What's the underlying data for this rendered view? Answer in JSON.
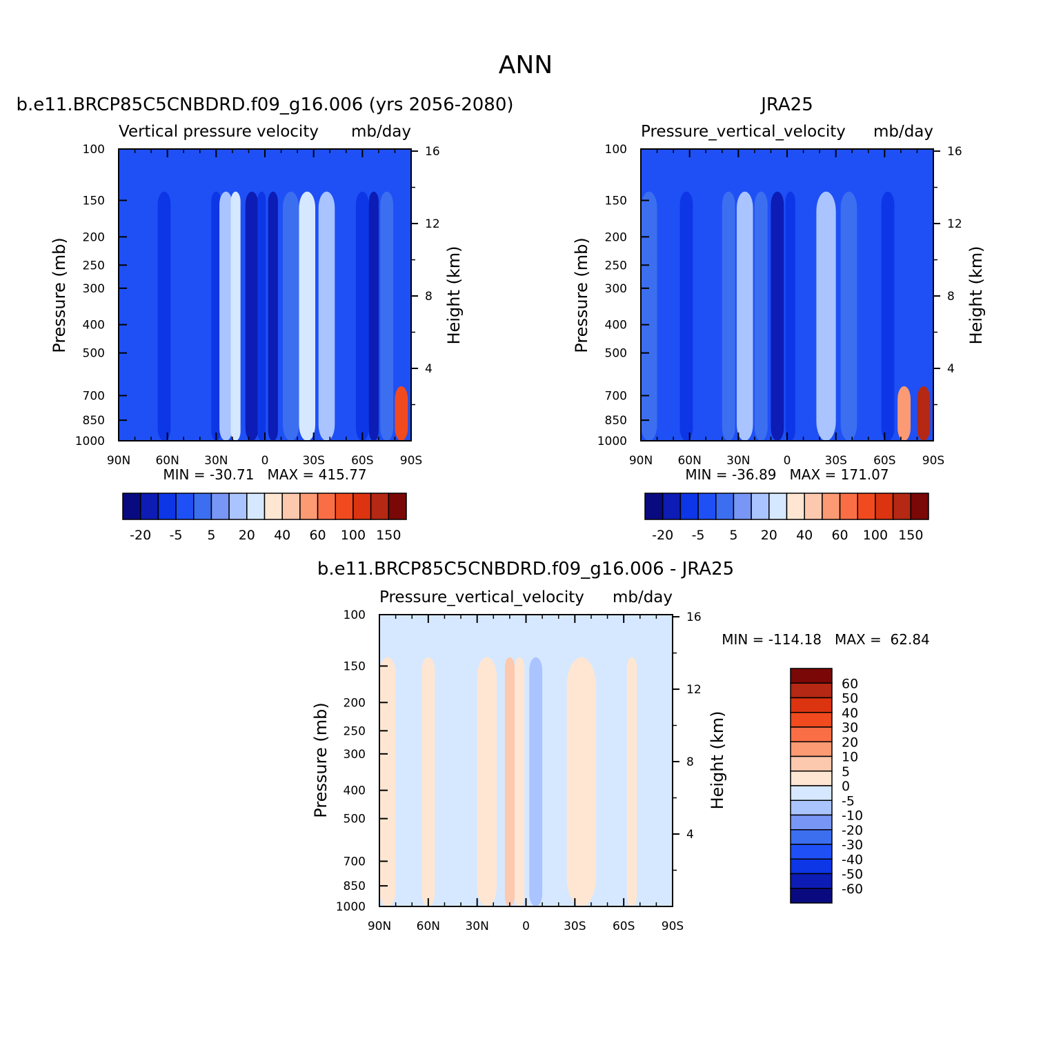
{
  "figure_title": "ANN",
  "colors": {
    "model_obs_palette": [
      "#0a0a80",
      "#0c1cb4",
      "#0c36e6",
      "#1e50f5",
      "#3c6ef0",
      "#7896f5",
      "#aac4ff",
      "#d6e8ff",
      "#ffe6d2",
      "#fcc8ae",
      "#fc9a74",
      "#fa6e46",
      "#f04a1e",
      "#dc3410",
      "#b42814",
      "#7a0806"
    ],
    "diff_palette": [
      "#0a0a80",
      "#0c1cb4",
      "#0c36e6",
      "#1e50f5",
      "#3c6ef0",
      "#7896f5",
      "#aac4ff",
      "#d6e8ff",
      "#ffe6d2",
      "#fcc8ae",
      "#fc9a74",
      "#fa6e46",
      "#f04a1e",
      "#dc3410",
      "#b42814",
      "#7a0806"
    ]
  },
  "panels": [
    {
      "id": "model",
      "title": "b.e11.BRCP85C5CNBDRD.f09_g16.006 (yrs 2056-2080)",
      "subtitle_left": "Vertical pressure velocity",
      "subtitle_right": "mb/day",
      "ylabel": "Pressure (mb)",
      "y2label": "Height (km)",
      "minmax": "MIN = -30.71   MAX = 415.77",
      "colorbar_labels": [
        "-20",
        "-5",
        "5",
        "20",
        "40",
        "60",
        "100",
        "150"
      ]
    },
    {
      "id": "obs",
      "title": "JRA25",
      "subtitle_left": "Pressure_vertical_velocity",
      "subtitle_right": "mb/day",
      "ylabel": "Pressure (mb)",
      "y2label": "Height (km)",
      "minmax": "MIN = -36.89   MAX = 171.07",
      "colorbar_labels": [
        "-20",
        "-5",
        "5",
        "20",
        "40",
        "60",
        "100",
        "150"
      ]
    },
    {
      "id": "diff",
      "title": "b.e11.BRCP85C5CNBDRD.f09_g16.006 - JRA25",
      "subtitle_left": "Pressure_vertical_velocity",
      "subtitle_right": "mb/day",
      "ylabel": "Pressure (mb)",
      "y2label": "Height (km)",
      "minmax": "MIN = -114.18   MAX =  62.84",
      "colorbar_labels": [
        "60",
        "50",
        "40",
        "30",
        "20",
        "10",
        "5",
        "0",
        "-5",
        "-10",
        "-20",
        "-30",
        "-40",
        "-50",
        "-60"
      ]
    }
  ],
  "chart_data": [
    {
      "type": "heatmap",
      "title": "b.e11.BRCP85C5CNBDRD.f09_g16.006 (yrs 2056-2080)",
      "xlabel": "",
      "ylabel": "Pressure (mb)",
      "y2label": "Height (km)",
      "x_ticks": [
        "90N",
        "60N",
        "30N",
        "0",
        "30S",
        "60S",
        "90S"
      ],
      "x_tick_values": [
        90,
        60,
        30,
        0,
        -30,
        -60,
        -90
      ],
      "xlim": [
        90,
        -90
      ],
      "y_ticks": [
        100,
        150,
        200,
        250,
        300,
        400,
        500,
        700,
        850,
        1000
      ],
      "ylim": [
        1000,
        100
      ],
      "y_scale": "log",
      "y2_ticks": [
        4,
        8,
        12,
        16
      ],
      "units": "mb/day",
      "levels": [
        -30,
        -20,
        -10,
        -5,
        0,
        5,
        10,
        20,
        30,
        40,
        50,
        60,
        80,
        100,
        150
      ],
      "min": -30.71,
      "max": 415.77,
      "bands": [
        {
          "lat_center": 85,
          "lat_width": 10,
          "value": -10
        },
        {
          "lat_center": 75,
          "lat_width": 10,
          "value": -10
        },
        {
          "lat_center": 62,
          "lat_width": 8,
          "value": -20
        },
        {
          "lat_center": 48,
          "lat_width": 10,
          "value": -10
        },
        {
          "lat_center": 38,
          "lat_width": 8,
          "value": -10
        },
        {
          "lat_center": 30,
          "lat_width": 6,
          "value": -20
        },
        {
          "lat_center": 24,
          "lat_width": 8,
          "value": 5
        },
        {
          "lat_center": 18,
          "lat_width": 6,
          "value": 10
        },
        {
          "lat_center": 8,
          "lat_width": 8,
          "value": -30
        },
        {
          "lat_center": 2,
          "lat_width": 5,
          "value": -20
        },
        {
          "lat_center": -5,
          "lat_width": 6,
          "value": -30
        },
        {
          "lat_center": -16,
          "lat_width": 10,
          "value": -5
        },
        {
          "lat_center": -26,
          "lat_width": 10,
          "value": 10
        },
        {
          "lat_center": -38,
          "lat_width": 10,
          "value": 5
        },
        {
          "lat_center": -50,
          "lat_width": 8,
          "value": -10
        },
        {
          "lat_center": -60,
          "lat_width": 8,
          "value": -20
        },
        {
          "lat_center": -67,
          "lat_width": 6,
          "value": -30
        },
        {
          "lat_center": -75,
          "lat_width": 8,
          "value": -5
        },
        {
          "lat_center": -84,
          "lat_width": 8,
          "value": 60
        }
      ]
    },
    {
      "type": "heatmap",
      "title": "JRA25",
      "xlabel": "",
      "ylabel": "Pressure (mb)",
      "y2label": "Height (km)",
      "x_ticks": [
        "90N",
        "60N",
        "30N",
        "0",
        "30S",
        "60S",
        "90S"
      ],
      "x_tick_values": [
        90,
        60,
        30,
        0,
        -30,
        -60,
        -90
      ],
      "xlim": [
        90,
        -90
      ],
      "y_ticks": [
        100,
        150,
        200,
        250,
        300,
        400,
        500,
        700,
        850,
        1000
      ],
      "ylim": [
        1000,
        100
      ],
      "y_scale": "log",
      "y2_ticks": [
        4,
        8,
        12,
        16
      ],
      "units": "mb/day",
      "levels": [
        -30,
        -20,
        -10,
        -5,
        0,
        5,
        10,
        20,
        30,
        40,
        50,
        60,
        80,
        100,
        150
      ],
      "min": -36.89,
      "max": 171.07,
      "bands": [
        {
          "lat_center": 85,
          "lat_width": 10,
          "value": -5
        },
        {
          "lat_center": 75,
          "lat_width": 10,
          "value": -10
        },
        {
          "lat_center": 62,
          "lat_width": 8,
          "value": -20
        },
        {
          "lat_center": 48,
          "lat_width": 10,
          "value": -10
        },
        {
          "lat_center": 36,
          "lat_width": 8,
          "value": -5
        },
        {
          "lat_center": 26,
          "lat_width": 10,
          "value": 5
        },
        {
          "lat_center": 16,
          "lat_width": 8,
          "value": -5
        },
        {
          "lat_center": 6,
          "lat_width": 8,
          "value": -30
        },
        {
          "lat_center": -2,
          "lat_width": 6,
          "value": -20
        },
        {
          "lat_center": -12,
          "lat_width": 8,
          "value": -10
        },
        {
          "lat_center": -24,
          "lat_width": 12,
          "value": 5
        },
        {
          "lat_center": -38,
          "lat_width": 10,
          "value": -5
        },
        {
          "lat_center": -50,
          "lat_width": 8,
          "value": -10
        },
        {
          "lat_center": -62,
          "lat_width": 8,
          "value": -20
        },
        {
          "lat_center": -72,
          "lat_width": 8,
          "value": 40
        },
        {
          "lat_center": -84,
          "lat_width": 8,
          "value": 100
        }
      ]
    },
    {
      "type": "heatmap",
      "title": "b.e11.BRCP85C5CNBDRD.f09_g16.006 - JRA25",
      "xlabel": "",
      "ylabel": "Pressure (mb)",
      "y2label": "Height (km)",
      "x_ticks": [
        "90N",
        "60N",
        "30N",
        "0",
        "30S",
        "60S",
        "90S"
      ],
      "x_tick_values": [
        90,
        60,
        30,
        0,
        -30,
        -60,
        -90
      ],
      "xlim": [
        90,
        -90
      ],
      "y_ticks": [
        100,
        150,
        200,
        250,
        300,
        400,
        500,
        700,
        850,
        1000
      ],
      "ylim": [
        1000,
        100
      ],
      "y_scale": "log",
      "y2_ticks": [
        4,
        8,
        12,
        16
      ],
      "units": "mb/day",
      "levels": [
        -60,
        -50,
        -40,
        -30,
        -20,
        -10,
        -5,
        0,
        5,
        10,
        20,
        30,
        40,
        50,
        60
      ],
      "min": -114.18,
      "max": 62.84,
      "bands": [
        {
          "lat_center": 85,
          "lat_width": 10,
          "value": 2
        },
        {
          "lat_center": 72,
          "lat_width": 16,
          "value": -2
        },
        {
          "lat_center": 60,
          "lat_width": 8,
          "value": 2
        },
        {
          "lat_center": 48,
          "lat_width": 16,
          "value": -2
        },
        {
          "lat_center": 34,
          "lat_width": 8,
          "value": -2
        },
        {
          "lat_center": 24,
          "lat_width": 12,
          "value": 2
        },
        {
          "lat_center": 10,
          "lat_width": 6,
          "value": 8
        },
        {
          "lat_center": 4,
          "lat_width": 6,
          "value": 2
        },
        {
          "lat_center": -6,
          "lat_width": 8,
          "value": -6
        },
        {
          "lat_center": -18,
          "lat_width": 14,
          "value": -2
        },
        {
          "lat_center": -34,
          "lat_width": 18,
          "value": 2
        },
        {
          "lat_center": -52,
          "lat_width": 12,
          "value": -2
        },
        {
          "lat_center": -65,
          "lat_width": 6,
          "value": 2
        },
        {
          "lat_center": -74,
          "lat_width": 8,
          "value": -2
        },
        {
          "lat_center": -84,
          "lat_width": 8,
          "value": -2
        }
      ]
    }
  ]
}
